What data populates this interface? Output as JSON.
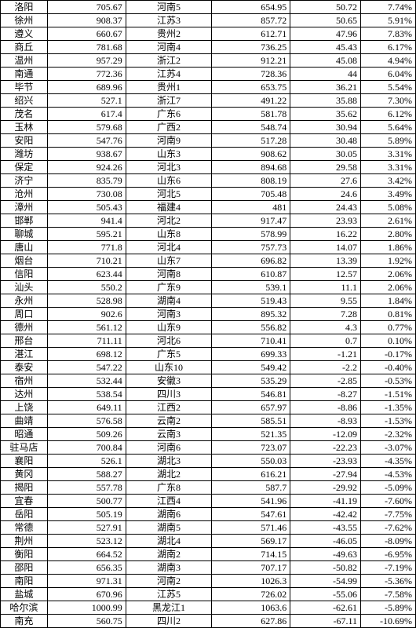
{
  "rows": [
    {
      "city": "洛阳",
      "v1": "705.67",
      "region": "河南5",
      "v2": "654.95",
      "v3": "50.72",
      "v4": "7.74%"
    },
    {
      "city": "徐州",
      "v1": "908.37",
      "region": "江苏3",
      "v2": "857.72",
      "v3": "50.65",
      "v4": "5.91%"
    },
    {
      "city": "遵义",
      "v1": "660.67",
      "region": "贵州2",
      "v2": "612.71",
      "v3": "47.96",
      "v4": "7.83%"
    },
    {
      "city": "商丘",
      "v1": "781.68",
      "region": "河南4",
      "v2": "736.25",
      "v3": "45.43",
      "v4": "6.17%"
    },
    {
      "city": "温州",
      "v1": "957.29",
      "region": "浙江2",
      "v2": "912.21",
      "v3": "45.08",
      "v4": "4.94%"
    },
    {
      "city": "南通",
      "v1": "772.36",
      "region": "江苏4",
      "v2": "728.36",
      "v3": "44",
      "v4": "6.04%"
    },
    {
      "city": "毕节",
      "v1": "689.96",
      "region": "贵州1",
      "v2": "653.75",
      "v3": "36.21",
      "v4": "5.54%"
    },
    {
      "city": "绍兴",
      "v1": "527.1",
      "region": "浙江7",
      "v2": "491.22",
      "v3": "35.88",
      "v4": "7.30%"
    },
    {
      "city": "茂名",
      "v1": "617.4",
      "region": "广东6",
      "v2": "581.78",
      "v3": "35.62",
      "v4": "6.12%"
    },
    {
      "city": "玉林",
      "v1": "579.68",
      "region": "广西2",
      "v2": "548.74",
      "v3": "30.94",
      "v4": "5.64%"
    },
    {
      "city": "安阳",
      "v1": "547.76",
      "region": "河南9",
      "v2": "517.28",
      "v3": "30.48",
      "v4": "5.89%"
    },
    {
      "city": "潍坊",
      "v1": "938.67",
      "region": "山东3",
      "v2": "908.62",
      "v3": "30.05",
      "v4": "3.31%"
    },
    {
      "city": "保定",
      "v1": "924.26",
      "region": "河北3",
      "v2": "894.68",
      "v3": "29.58",
      "v4": "3.31%"
    },
    {
      "city": "济宁",
      "v1": "835.79",
      "region": "山东6",
      "v2": "808.19",
      "v3": "27.6",
      "v4": "3.42%"
    },
    {
      "city": "沧州",
      "v1": "730.08",
      "region": "河北5",
      "v2": "705.48",
      "v3": "24.6",
      "v4": "3.49%"
    },
    {
      "city": "漳州",
      "v1": "505.43",
      "region": "福建4",
      "v2": "481",
      "v3": "24.43",
      "v4": "5.08%"
    },
    {
      "city": "邯郸",
      "v1": "941.4",
      "region": "河北2",
      "v2": "917.47",
      "v3": "23.93",
      "v4": "2.61%"
    },
    {
      "city": "聊城",
      "v1": "595.21",
      "region": "山东8",
      "v2": "578.99",
      "v3": "16.22",
      "v4": "2.80%"
    },
    {
      "city": "唐山",
      "v1": "771.8",
      "region": "河北4",
      "v2": "757.73",
      "v3": "14.07",
      "v4": "1.86%"
    },
    {
      "city": "烟台",
      "v1": "710.21",
      "region": "山东7",
      "v2": "696.82",
      "v3": "13.39",
      "v4": "1.92%"
    },
    {
      "city": "信阳",
      "v1": "623.44",
      "region": "河南8",
      "v2": "610.87",
      "v3": "12.57",
      "v4": "2.06%"
    },
    {
      "city": "汕头",
      "v1": "550.2",
      "region": "广东9",
      "v2": "539.1",
      "v3": "11.1",
      "v4": "2.06%"
    },
    {
      "city": "永州",
      "v1": "528.98",
      "region": "湖南4",
      "v2": "519.43",
      "v3": "9.55",
      "v4": "1.84%"
    },
    {
      "city": "周口",
      "v1": "902.6",
      "region": "河南3",
      "v2": "895.32",
      "v3": "7.28",
      "v4": "0.81%"
    },
    {
      "city": "德州",
      "v1": "561.12",
      "region": "山东9",
      "v2": "556.82",
      "v3": "4.3",
      "v4": "0.77%"
    },
    {
      "city": "邢台",
      "v1": "711.11",
      "region": "河北6",
      "v2": "710.41",
      "v3": "0.7",
      "v4": "0.10%"
    },
    {
      "city": "湛江",
      "v1": "698.12",
      "region": "广东5",
      "v2": "699.33",
      "v3": "-1.21",
      "v4": "-0.17%"
    },
    {
      "city": "泰安",
      "v1": "547.22",
      "region": "山东10",
      "v2": "549.42",
      "v3": "-2.2",
      "v4": "-0.40%"
    },
    {
      "city": "宿州",
      "v1": "532.44",
      "region": "安徽3",
      "v2": "535.29",
      "v3": "-2.85",
      "v4": "-0.53%"
    },
    {
      "city": "达州",
      "v1": "538.54",
      "region": "四川3",
      "v2": "546.81",
      "v3": "-8.27",
      "v4": "-1.51%"
    },
    {
      "city": "上饶",
      "v1": "649.11",
      "region": "江西2",
      "v2": "657.97",
      "v3": "-8.86",
      "v4": "-1.35%"
    },
    {
      "city": "曲靖",
      "v1": "576.58",
      "region": "云南2",
      "v2": "585.51",
      "v3": "-8.93",
      "v4": "-1.53%"
    },
    {
      "city": "昭通",
      "v1": "509.26",
      "region": "云南3",
      "v2": "521.35",
      "v3": "-12.09",
      "v4": "-2.32%"
    },
    {
      "city": "驻马店",
      "v1": "700.84",
      "region": "河南6",
      "v2": "723.07",
      "v3": "-22.23",
      "v4": "-3.07%"
    },
    {
      "city": "襄阳",
      "v1": "526.1",
      "region": "湖北3",
      "v2": "550.03",
      "v3": "-23.93",
      "v4": "-4.35%"
    },
    {
      "city": "黄冈",
      "v1": "588.27",
      "region": "湖北2",
      "v2": "616.21",
      "v3": "-27.94",
      "v4": "-4.53%"
    },
    {
      "city": "揭阳",
      "v1": "557.78",
      "region": "广东8",
      "v2": "587.7",
      "v3": "-29.92",
      "v4": "-5.09%"
    },
    {
      "city": "宜春",
      "v1": "500.77",
      "region": "江西4",
      "v2": "541.96",
      "v3": "-41.19",
      "v4": "-7.60%"
    },
    {
      "city": "岳阳",
      "v1": "505.19",
      "region": "湖南6",
      "v2": "547.61",
      "v3": "-42.42",
      "v4": "-7.75%"
    },
    {
      "city": "常德",
      "v1": "527.91",
      "region": "湖南5",
      "v2": "571.46",
      "v3": "-43.55",
      "v4": "-7.62%"
    },
    {
      "city": "荆州",
      "v1": "523.12",
      "region": "湖北4",
      "v2": "569.17",
      "v3": "-46.05",
      "v4": "-8.09%"
    },
    {
      "city": "衡阳",
      "v1": "664.52",
      "region": "湖南2",
      "v2": "714.15",
      "v3": "-49.63",
      "v4": "-6.95%"
    },
    {
      "city": "邵阳",
      "v1": "656.35",
      "region": "湖南3",
      "v2": "707.17",
      "v3": "-50.82",
      "v4": "-7.19%"
    },
    {
      "city": "南阳",
      "v1": "971.31",
      "region": "河南2",
      "v2": "1026.3",
      "v3": "-54.99",
      "v4": "-5.36%"
    },
    {
      "city": "盐城",
      "v1": "670.96",
      "region": "江苏5",
      "v2": "726.02",
      "v3": "-55.06",
      "v4": "-7.58%"
    },
    {
      "city": "哈尔滨",
      "v1": "1000.99",
      "region": "黑龙江1",
      "v2": "1063.6",
      "v3": "-62.61",
      "v4": "-5.89%"
    },
    {
      "city": "南充",
      "v1": "560.75",
      "region": "四川2",
      "v2": "627.86",
      "v3": "-67.11",
      "v4": "-10.69%"
    }
  ]
}
